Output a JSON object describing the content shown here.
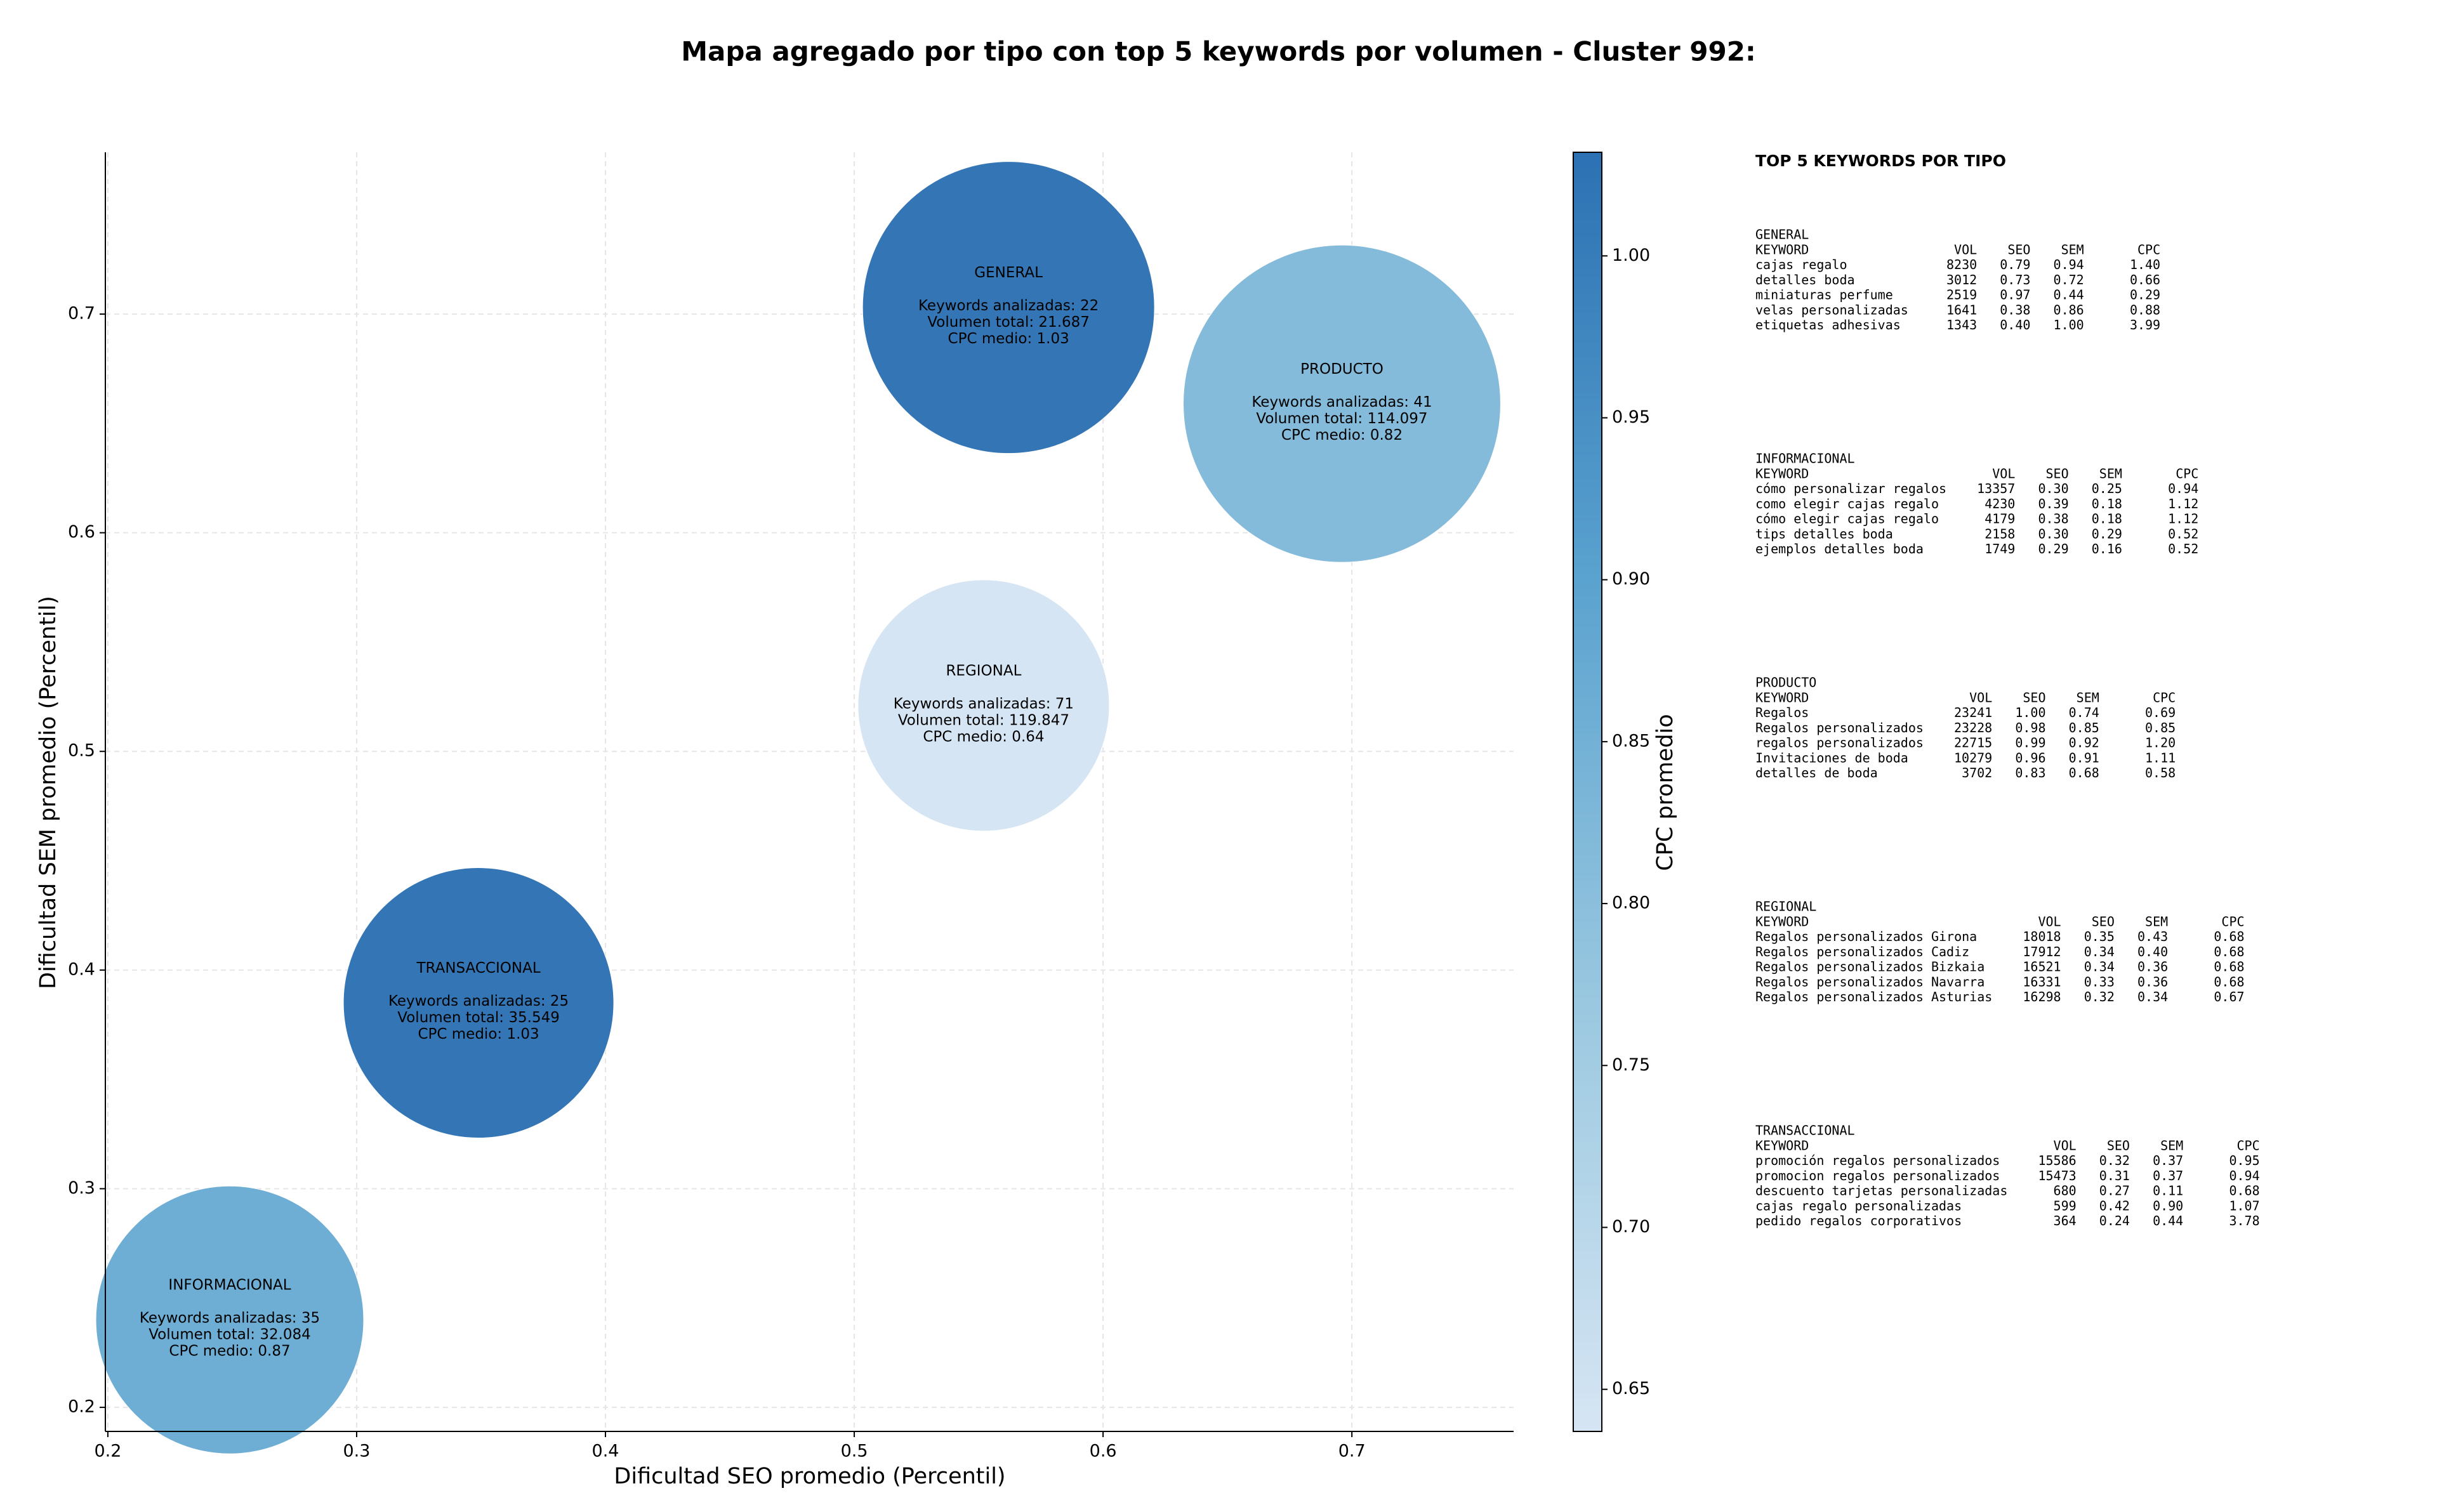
{
  "chart_data": {
    "type": "bubble",
    "title": "Mapa agregado por tipo con top 5 keywords por volumen - Cluster 992:",
    "xlabel": "Dificultad SEO promedio (Percentil)",
    "ylabel": "Dificultad SEM promedio (Percentil)",
    "colorbar_label": "CPC promedio",
    "xlim": [
      0.199,
      0.765
    ],
    "ylim": [
      0.189,
      0.774
    ],
    "xticks": [
      0.2,
      0.3,
      0.4,
      0.5,
      0.6,
      0.7
    ],
    "yticks": [
      0.2,
      0.3,
      0.4,
      0.5,
      0.6,
      0.7
    ],
    "grid": true,
    "clim": [
      0.637,
      1.032
    ],
    "cticks": [
      {
        "value": 0.65,
        "label": "0.65"
      },
      {
        "value": 0.7,
        "label": "0.70"
      },
      {
        "value": 0.75,
        "label": "0.75"
      },
      {
        "value": 0.8,
        "label": "0.80"
      },
      {
        "value": 0.85,
        "label": "0.85"
      },
      {
        "value": 0.9,
        "label": "0.90"
      },
      {
        "value": 0.95,
        "label": "0.95"
      },
      {
        "value": 1.0,
        "label": "1.00"
      }
    ],
    "colormap": [
      "#d6e5f3",
      "#9ac8e0",
      "#5aa2cf",
      "#2c71b3"
    ],
    "points": [
      {
        "name": "GENERAL",
        "x": 0.562,
        "y": 0.703,
        "cpc": 1.03,
        "labels": [
          "Keywords analizadas: 22",
          "Volumen total: 21.687",
          "CPC medio: 1.03"
        ]
      },
      {
        "name": "PRODUCTO",
        "x": 0.696,
        "y": 0.659,
        "cpc": 0.82,
        "labels": [
          "Keywords analizadas: 41",
          "Volumen total: 114.097",
          "CPC medio: 0.82"
        ]
      },
      {
        "name": "REGIONAL",
        "x": 0.552,
        "y": 0.521,
        "cpc": 0.64,
        "labels": [
          "Keywords analizadas: 71",
          "Volumen total: 119.847",
          "CPC medio: 0.64"
        ]
      },
      {
        "name": "TRANSACCIONAL",
        "x": 0.349,
        "y": 0.385,
        "cpc": 1.03,
        "labels": [
          "Keywords analizadas: 25",
          "Volumen total: 35.549",
          "CPC medio: 1.03"
        ]
      },
      {
        "name": "INFORMACIONAL",
        "x": 0.249,
        "y": 0.24,
        "cpc": 0.87,
        "labels": [
          "Keywords analizadas: 35",
          "Volumen total: 32.084",
          "CPC medio: 0.87"
        ]
      }
    ]
  },
  "panel": {
    "title": "TOP 5 KEYWORDS POR TIPO",
    "groups": [
      {
        "name": "GENERAL",
        "header": [
          "KEYWORD",
          "VOL",
          "SEO",
          "SEM",
          "CPC"
        ],
        "rows": [
          [
            "cajas regalo",
            "8230",
            "0.79",
            "0.94",
            "1.40"
          ],
          [
            "detalles boda",
            "3012",
            "0.73",
            "0.72",
            "0.66"
          ],
          [
            "miniaturas perfume",
            "2519",
            "0.97",
            "0.44",
            "0.29"
          ],
          [
            "velas personalizadas",
            "1641",
            "0.38",
            "0.86",
            "0.88"
          ],
          [
            "etiquetas adhesivas",
            "1343",
            "0.40",
            "1.00",
            "3.99"
          ]
        ]
      },
      {
        "name": "INFORMACIONAL",
        "header": [
          "KEYWORD",
          "VOL",
          "SEO",
          "SEM",
          "CPC"
        ],
        "rows": [
          [
            "cómo personalizar regalos",
            "13357",
            "0.30",
            "0.25",
            "0.94"
          ],
          [
            "como elegir cajas regalo",
            "4230",
            "0.39",
            "0.18",
            "1.12"
          ],
          [
            "cómo elegir cajas regalo",
            "4179",
            "0.38",
            "0.18",
            "1.12"
          ],
          [
            "tips detalles boda",
            "2158",
            "0.30",
            "0.29",
            "0.52"
          ],
          [
            "ejemplos detalles boda",
            "1749",
            "0.29",
            "0.16",
            "0.52"
          ]
        ]
      },
      {
        "name": "PRODUCTO",
        "header": [
          "KEYWORD",
          "VOL",
          "SEO",
          "SEM",
          "CPC"
        ],
        "rows": [
          [
            "Regalos",
            "23241",
            "1.00",
            "0.74",
            "0.69"
          ],
          [
            "Regalos personalizados",
            "23228",
            "0.98",
            "0.85",
            "0.85"
          ],
          [
            "regalos personalizados",
            "22715",
            "0.99",
            "0.92",
            "1.20"
          ],
          [
            "Invitaciones de boda",
            "10279",
            "0.96",
            "0.91",
            "1.11"
          ],
          [
            "detalles de boda",
            "3702",
            "0.83",
            "0.68",
            "0.58"
          ]
        ]
      },
      {
        "name": "REGIONAL",
        "header": [
          "KEYWORD",
          "VOL",
          "SEO",
          "SEM",
          "CPC"
        ],
        "rows": [
          [
            "Regalos personalizados Girona",
            "18018",
            "0.35",
            "0.43",
            "0.68"
          ],
          [
            "Regalos personalizados Cadiz",
            "17912",
            "0.34",
            "0.40",
            "0.68"
          ],
          [
            "Regalos personalizados Bizkaia",
            "16521",
            "0.34",
            "0.36",
            "0.68"
          ],
          [
            "Regalos personalizados Navarra",
            "16331",
            "0.33",
            "0.36",
            "0.68"
          ],
          [
            "Regalos personalizados Asturias",
            "16298",
            "0.32",
            "0.34",
            "0.67"
          ]
        ]
      },
      {
        "name": "TRANSACCIONAL",
        "header": [
          "KEYWORD",
          "VOL",
          "SEO",
          "SEM",
          "CPC"
        ],
        "rows": [
          [
            "promoción regalos personalizados",
            "15586",
            "0.32",
            "0.37",
            "0.95"
          ],
          [
            "promocion regalos personalizados",
            "15473",
            "0.31",
            "0.37",
            "0.94"
          ],
          [
            "descuento tarjetas personalizadas",
            "680",
            "0.27",
            "0.11",
            "0.68"
          ],
          [
            "cajas regalo personalizadas",
            "599",
            "0.42",
            "0.90",
            "1.07"
          ],
          [
            "pedido regalos corporativos",
            "364",
            "0.24",
            "0.44",
            "3.78"
          ]
        ]
      }
    ]
  }
}
